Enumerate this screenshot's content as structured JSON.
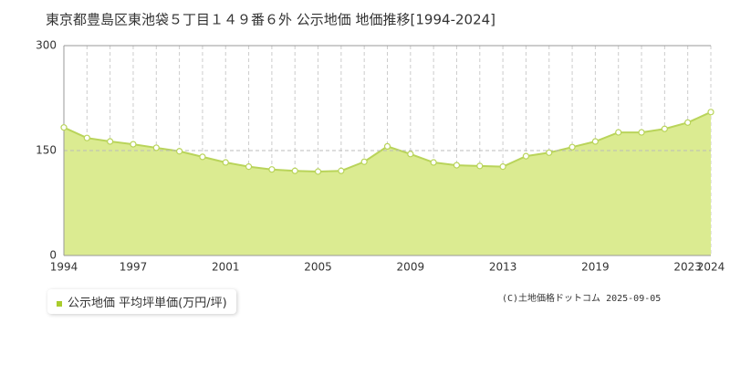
{
  "chart_data": {
    "type": "area",
    "title": "東京都豊島区東池袋５丁目１４９番６外 公示地価 地価推移[1994-2024]",
    "categories": [
      "1994",
      null,
      null,
      "1997",
      null,
      null,
      null,
      "2001",
      null,
      null,
      null,
      "2005",
      null,
      null,
      null,
      "2009",
      null,
      null,
      null,
      "2013",
      null,
      null,
      null,
      "2019",
      null,
      null,
      null,
      "2023",
      "2024"
    ],
    "series": [
      {
        "name": "公示地価 平均坪単価(万円/坪)",
        "color": "#a9cc2c",
        "values": [
          183,
          168,
          163,
          159,
          154,
          149,
          141,
          133,
          127,
          123,
          121,
          120,
          121,
          134,
          156,
          145,
          133,
          129,
          128,
          127,
          142,
          147,
          155,
          163,
          176,
          176,
          181,
          190,
          205
        ]
      }
    ],
    "ylim": [
      0,
      300
    ],
    "yticks": [
      0,
      150,
      300
    ],
    "grid": true,
    "fill_color": "#dbeb91",
    "line_color": "#b9d45a",
    "copyright": "(C)土地価格ドットコム 2025-09-05"
  }
}
